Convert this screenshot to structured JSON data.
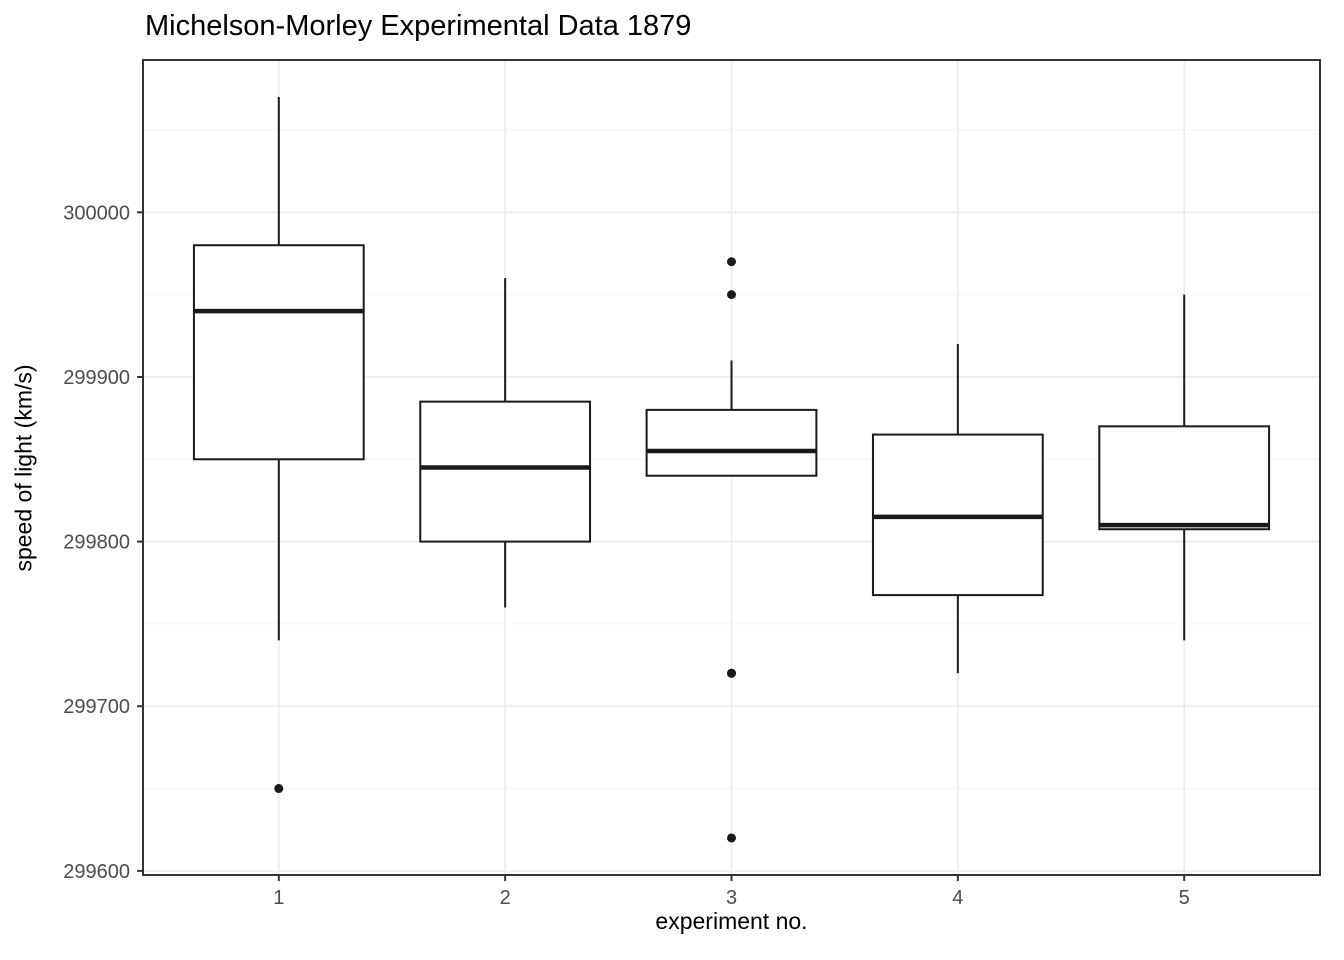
{
  "chart_data": {
    "type": "boxplot",
    "title": "Michelson-Morley Experimental Data 1879",
    "xlabel": "experiment no.",
    "ylabel": "speed of light (km/s)",
    "categories": [
      "1",
      "2",
      "3",
      "4",
      "5"
    ],
    "ylim": [
      299597.5,
      300092.5
    ],
    "y_major_ticks": [
      299600,
      299700,
      299800,
      299900,
      300000
    ],
    "y_minor_ticks": [
      299650,
      299750,
      299850,
      299950,
      300050
    ],
    "series": [
      {
        "category": "1",
        "whisker_low": 299740,
        "q1": 299850,
        "median": 299940,
        "q3": 299980,
        "whisker_high": 300070,
        "outliers": [
          299650
        ]
      },
      {
        "category": "2",
        "whisker_low": 299760,
        "q1": 299800,
        "median": 299845,
        "q3": 299885,
        "whisker_high": 299960,
        "outliers": []
      },
      {
        "category": "3",
        "whisker_low": 299840,
        "q1": 299840,
        "median": 299855,
        "q3": 299880,
        "whisker_high": 299910,
        "outliers": [
          299970,
          299950,
          299720,
          299720,
          299620
        ]
      },
      {
        "category": "4",
        "whisker_low": 299720,
        "q1": 299767.5,
        "median": 299815,
        "q3": 299865,
        "whisker_high": 299920,
        "outliers": []
      },
      {
        "category": "5",
        "whisker_low": 299740,
        "q1": 299807.5,
        "median": 299810,
        "q3": 299870,
        "whisker_high": 299950,
        "outliers": []
      }
    ],
    "layout_hints": {
      "grid": "on",
      "legend": "none",
      "panel_background": "#ffffff",
      "box_fill": "#ffffff"
    },
    "colors": {
      "box_stroke": "#1a1a1a",
      "outlier_fill": "#1a1a1a",
      "grid_major": "#ebebeb",
      "grid_minor": "#f4f4f4",
      "panel_border": "#333333",
      "tick_mark": "#333333",
      "tick_label": "#4d4d4d",
      "title_color": "#000000"
    }
  }
}
